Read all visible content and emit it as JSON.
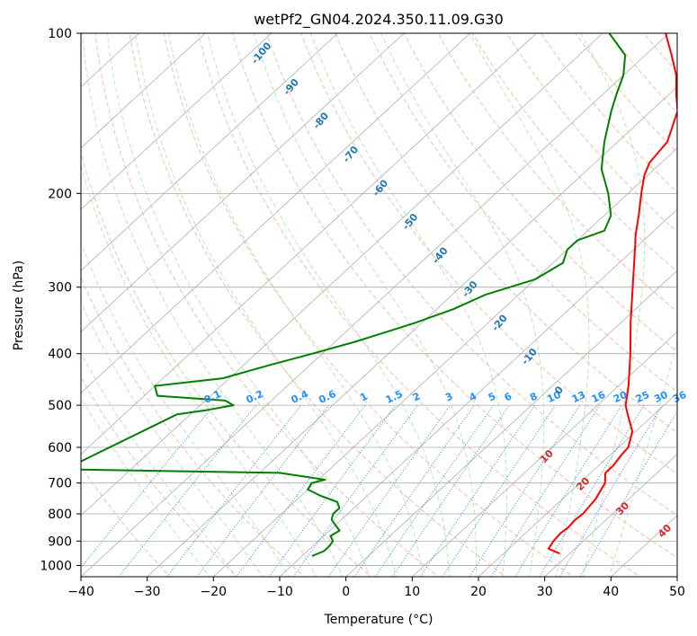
{
  "chart_data": {
    "type": "line",
    "subtype": "skew-T log-p diagram",
    "title": "wetPf2_GN04.2024.350.11.09.G30",
    "xlabel": "Temperature (°C)",
    "ylabel": "Pressure (hPa)",
    "xlim": [
      -40,
      50
    ],
    "ylim": [
      1050,
      100
    ],
    "y_scale": "log",
    "grid": true,
    "x_ticks": [
      "−40",
      "−30",
      "−20",
      "−10",
      "0",
      "10",
      "20",
      "30",
      "40",
      "50"
    ],
    "y_ticks": [
      "100",
      "200",
      "300",
      "400",
      "500",
      "600",
      "700",
      "800",
      "900",
      "1000"
    ],
    "series": [
      {
        "role": "temperature",
        "color": "#ff0000",
        "points": [
          [
            950,
            28.5
          ],
          [
            930,
            26.0
          ],
          [
            900,
            25.5
          ],
          [
            870,
            25.3
          ],
          [
            850,
            25.5
          ],
          [
            820,
            25.3
          ],
          [
            800,
            25.5
          ],
          [
            750,
            25.0
          ],
          [
            700,
            23.8
          ],
          [
            670,
            22.2
          ],
          [
            650,
            22.2
          ],
          [
            620,
            21.7
          ],
          [
            600,
            21.5
          ],
          [
            560,
            19.5
          ],
          [
            520,
            16.0
          ],
          [
            500,
            14.2
          ],
          [
            460,
            11.5
          ],
          [
            400,
            6.5
          ],
          [
            350,
            1.5
          ],
          [
            300,
            -4.0
          ],
          [
            250,
            -10.5
          ],
          [
            240,
            -12.0
          ],
          [
            220,
            -14.8
          ],
          [
            200,
            -18.0
          ],
          [
            185,
            -20.5
          ],
          [
            175,
            -21.8
          ],
          [
            160,
            -22.5
          ],
          [
            140,
            -26.0
          ],
          [
            130,
            -29.0
          ],
          [
            120,
            -32.0
          ],
          [
            110,
            -36.0
          ],
          [
            100,
            -40.5
          ]
        ]
      },
      {
        "role": "dewpoint",
        "color": "#008000",
        "points": [
          [
            960,
            -8.5
          ],
          [
            940,
            -7.5
          ],
          [
            920,
            -7.5
          ],
          [
            900,
            -7.8
          ],
          [
            880,
            -9.0
          ],
          [
            860,
            -8.5
          ],
          [
            840,
            -10.0
          ],
          [
            820,
            -11.5
          ],
          [
            800,
            -12.2
          ],
          [
            780,
            -12.2
          ],
          [
            760,
            -13.5
          ],
          [
            740,
            -17.0
          ],
          [
            720,
            -20.0
          ],
          [
            700,
            -20.5
          ],
          [
            690,
            -19.0
          ],
          [
            670,
            -27.0
          ],
          [
            660,
            -60.0
          ],
          [
            520,
            -52.0
          ],
          [
            510,
            -48.0
          ],
          [
            500,
            -45.0
          ],
          [
            490,
            -47.0
          ],
          [
            480,
            -58.0
          ],
          [
            460,
            -60.0
          ],
          [
            445,
            -51.0
          ],
          [
            420,
            -46.0
          ],
          [
            400,
            -41.5
          ],
          [
            380,
            -37.0
          ],
          [
            365,
            -34.0
          ],
          [
            350,
            -31.0
          ],
          [
            330,
            -27.5
          ],
          [
            310,
            -25.0
          ],
          [
            290,
            -20.0
          ],
          [
            270,
            -18.5
          ],
          [
            255,
            -20.0
          ],
          [
            245,
            -20.0
          ],
          [
            235,
            -17.5
          ],
          [
            220,
            -19.0
          ],
          [
            200,
            -23.0
          ],
          [
            180,
            -28.0
          ],
          [
            160,
            -32.0
          ],
          [
            140,
            -36.0
          ],
          [
            130,
            -38.0
          ],
          [
            120,
            -40.0
          ],
          [
            110,
            -43.0
          ],
          [
            100,
            -49.0
          ]
        ]
      }
    ],
    "mixing_ratio_labels": [
      "0.1",
      "0.2",
      "0.4",
      "0.6",
      "1",
      "1.5",
      "2",
      "3",
      "4",
      "5",
      "6",
      "8",
      "10",
      "13",
      "16",
      "20",
      "25",
      "30",
      "36"
    ],
    "dry_adiabat_labels": [
      "-100",
      "-90",
      "-80",
      "-70",
      "-60",
      "-50",
      "-40",
      "-30",
      "-20",
      "-10",
      "0"
    ],
    "moist_adiabat_labels": [
      "10",
      "20",
      "30",
      "40"
    ]
  },
  "colors": {
    "isotherm": "#b0b0b0",
    "isobar": "#aaaaaa",
    "dry_adiabat": "#f4a582",
    "moist_adiabat": "#a6d9a6",
    "mixing_ratio": "#1e90ff",
    "dry_label": "#1f77b4",
    "moist_label": "#d62728"
  }
}
